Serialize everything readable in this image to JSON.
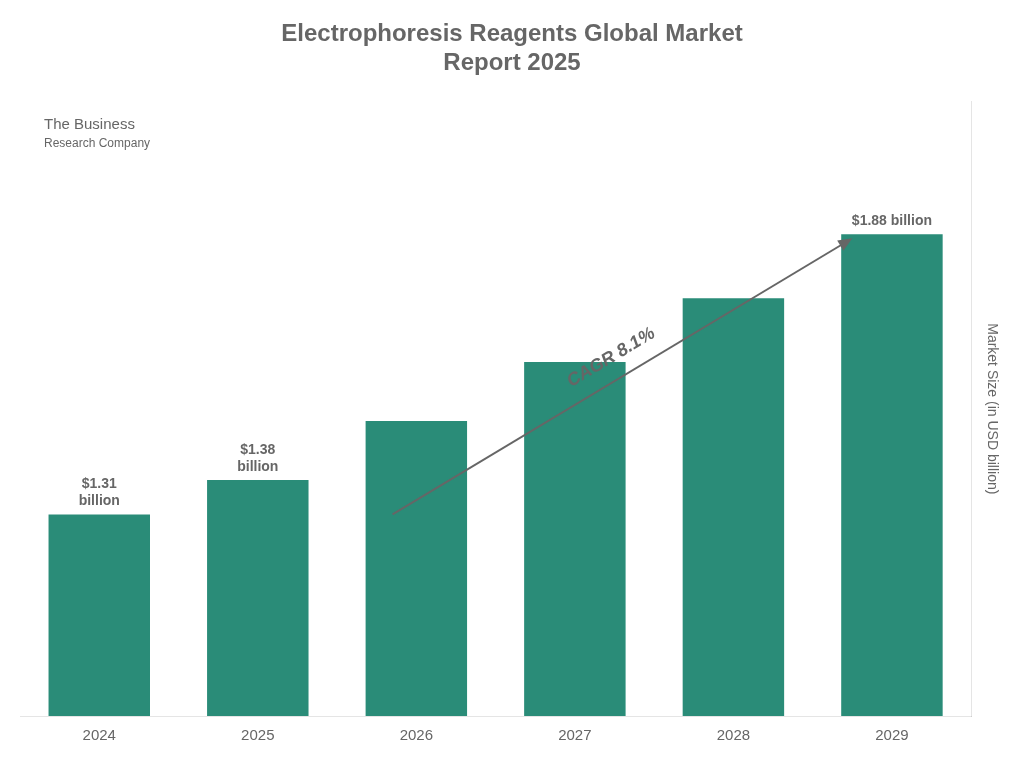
{
  "chart_data": {
    "type": "bar",
    "title": "Electrophoresis Reagents Global Market\nReport 2025",
    "ylabel": "Market Size (in USD billion)",
    "categories": [
      "2024",
      "2025",
      "2026",
      "2027",
      "2028",
      "2029"
    ],
    "values": [
      1.31,
      1.38,
      1.5,
      1.62,
      1.75,
      1.88
    ],
    "value_labels": [
      "$1.31\nbillion",
      "$1.38\nbillion",
      null,
      null,
      null,
      "$1.88 billion"
    ],
    "color": "#2a8c78",
    "ylim": [
      0.9,
      2.15
    ],
    "yticks": [],
    "tick_labels": "x",
    "grid": false,
    "annotations": [
      "CAGR 8.1%",
      "The Business",
      "Research Company"
    ]
  }
}
